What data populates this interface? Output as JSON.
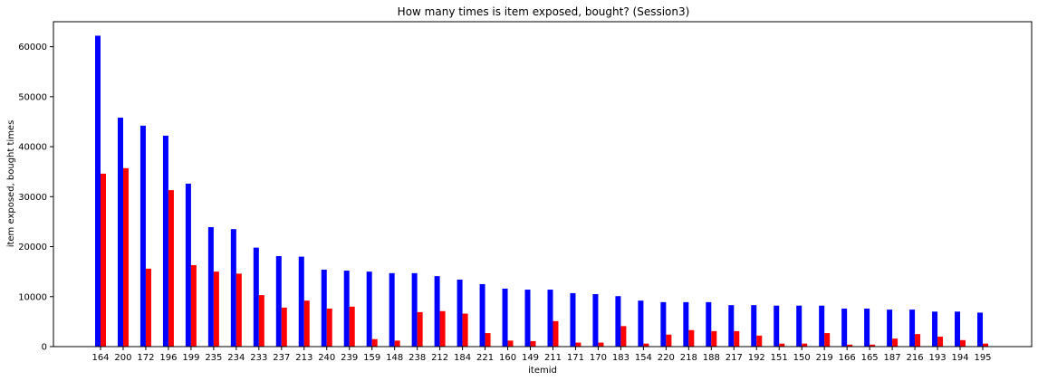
{
  "chart_data": {
    "type": "bar",
    "title": "How many times is item exposed, bought? (Session3)",
    "xlabel": "itemid",
    "ylabel": "item exposed, bought times",
    "ylim": [
      0,
      65000
    ],
    "yticks": [
      0,
      10000,
      20000,
      30000,
      40000,
      50000,
      60000
    ],
    "grid": false,
    "categories": [
      "164",
      "200",
      "172",
      "196",
      "199",
      "235",
      "234",
      "233",
      "237",
      "213",
      "240",
      "239",
      "159",
      "148",
      "238",
      "212",
      "184",
      "221",
      "160",
      "149",
      "211",
      "171",
      "170",
      "183",
      "154",
      "220",
      "218",
      "188",
      "217",
      "192",
      "151",
      "150",
      "219",
      "166",
      "165",
      "187",
      "216",
      "193",
      "194",
      "195"
    ],
    "series": [
      {
        "color": "#0000ff",
        "values": [
          62200,
          45800,
          44200,
          42200,
          32600,
          23900,
          23500,
          19800,
          18100,
          18000,
          15400,
          15200,
          15000,
          14700,
          14700,
          14100,
          13400,
          12500,
          11600,
          11400,
          11400,
          10700,
          10500,
          10100,
          9200,
          8900,
          8900,
          8900,
          8300,
          8300,
          8200,
          8200,
          8200,
          7600,
          7600,
          7400,
          7400,
          7000,
          7000,
          6800
        ]
      },
      {
        "color": "#ff0000",
        "values": [
          34600,
          35700,
          15600,
          31300,
          16300,
          15000,
          14600,
          10300,
          7800,
          9200,
          7600,
          8000,
          1500,
          1200,
          6900,
          7100,
          6600,
          2700,
          1200,
          1100,
          5100,
          800,
          800,
          4100,
          600,
          2400,
          3300,
          3100,
          3100,
          2200,
          600,
          600,
          2700,
          400,
          400,
          1600,
          2500,
          2000,
          1300,
          600
        ]
      }
    ]
  }
}
